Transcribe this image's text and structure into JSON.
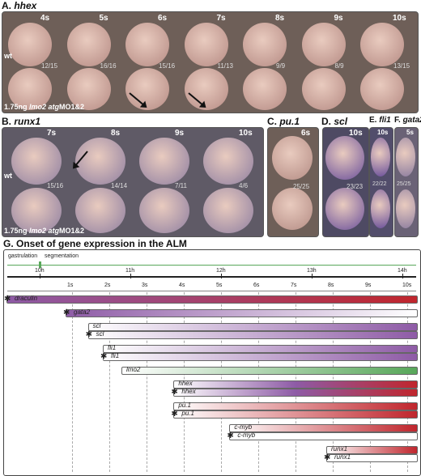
{
  "panels": {
    "A": {
      "label": "A.",
      "gene": "hhex",
      "stages": [
        "4s",
        "5s",
        "6s",
        "7s",
        "8s",
        "9s",
        "10s"
      ],
      "row1_label": "wt",
      "row1_counts": [
        "12/15",
        "16/16",
        "15/16",
        "11/13",
        "9/9",
        "8/9",
        "13/15"
      ],
      "row2_label_pre": "1.75ng ",
      "row2_label_gene": "lmo2 atg",
      "row2_label_post": "MO1&2"
    },
    "B": {
      "label": "B.",
      "gene": "runx1",
      "stages": [
        "7s",
        "8s",
        "9s",
        "10s"
      ],
      "row1_label": "wt",
      "row1_counts": [
        "15/16",
        "14/14",
        "7/11",
        "4/6"
      ],
      "row2_label_pre": "1.75ng ",
      "row2_label_gene": "lmo2 atg",
      "row2_label_post": "MO1&2"
    },
    "C": {
      "label": "C.",
      "gene": "pu.1",
      "stage": "6s",
      "count": "25/25"
    },
    "D": {
      "label": "D.",
      "gene": "scl",
      "stage": "10s",
      "count": "23/23"
    },
    "E": {
      "label": "E.",
      "gene": "fli1",
      "stage": "10s",
      "count": "22/22"
    },
    "F": {
      "label": "F.",
      "gene": "gata2",
      "stage": "5s",
      "count": "25/25"
    }
  },
  "timeline": {
    "title": "G.  Onset of gene expression in the ALM",
    "phase_labels": [
      "gastrulation",
      "segmentation"
    ],
    "hours": [
      "10h",
      "11h",
      "12h",
      "13h",
      "14h"
    ],
    "somites": [
      "1s",
      "2s",
      "3s",
      "4s",
      "5s",
      "6s",
      "7s",
      "8s",
      "9s",
      "10s"
    ],
    "colors": {
      "purple": "#8e5ba6",
      "red": "#c0262d",
      "green": "#58a75a",
      "white": "#ffffff"
    },
    "genes": [
      {
        "name": "draculin",
        "start": -0.1,
        "end": 10.6,
        "colors": [
          "purple",
          "red"
        ],
        "morphant": true
      },
      {
        "name": "gata2",
        "start": 1.0,
        "end": 10.4,
        "colors": [
          "purple",
          "white"
        ],
        "morphant": true
      },
      {
        "name": "scl",
        "start": 1.6,
        "end": 10.6,
        "colors": [
          "white",
          "purple"
        ],
        "morphant": false
      },
      {
        "name": "scl",
        "start": 1.6,
        "end": 10.6,
        "colors": [
          "white",
          "purple"
        ],
        "morphant": true
      },
      {
        "name": "fli1",
        "start": 2.0,
        "end": 10.6,
        "colors": [
          "white",
          "purple"
        ],
        "morphant": false
      },
      {
        "name": "fli1",
        "start": 2.0,
        "end": 10.6,
        "colors": [
          "white",
          "purple"
        ],
        "morphant": true
      },
      {
        "name": "lmo2",
        "start": 2.5,
        "end": 10.6,
        "colors": [
          "white",
          "green"
        ],
        "morphant": false
      },
      {
        "name": "hhex",
        "start": 3.9,
        "end": 10.6,
        "colors": [
          "white",
          "purple",
          "red"
        ],
        "morphant": false
      },
      {
        "name": "hhex",
        "start": 3.9,
        "end": 10.6,
        "colors": [
          "white",
          "purple",
          "red"
        ],
        "morphant": true
      },
      {
        "name": "pu.1",
        "start": 3.9,
        "end": 10.6,
        "colors": [
          "white",
          "red"
        ],
        "morphant": false
      },
      {
        "name": "pu.1",
        "start": 3.9,
        "end": 10.6,
        "colors": [
          "white",
          "red"
        ],
        "morphant": true
      },
      {
        "name": "c-myb",
        "start": 5.4,
        "end": 10.6,
        "colors": [
          "white",
          "red"
        ],
        "morphant": false
      },
      {
        "name": "c-myb",
        "start": 5.4,
        "end": 10.4,
        "colors": [
          "white",
          "white"
        ],
        "morphant": true
      },
      {
        "name": "runx1",
        "start": 8.0,
        "end": 10.6,
        "colors": [
          "white",
          "red"
        ],
        "morphant": false
      },
      {
        "name": "runx1",
        "start": 8.0,
        "end": 10.4,
        "colors": [
          "white",
          "white"
        ],
        "morphant": true
      }
    ]
  }
}
